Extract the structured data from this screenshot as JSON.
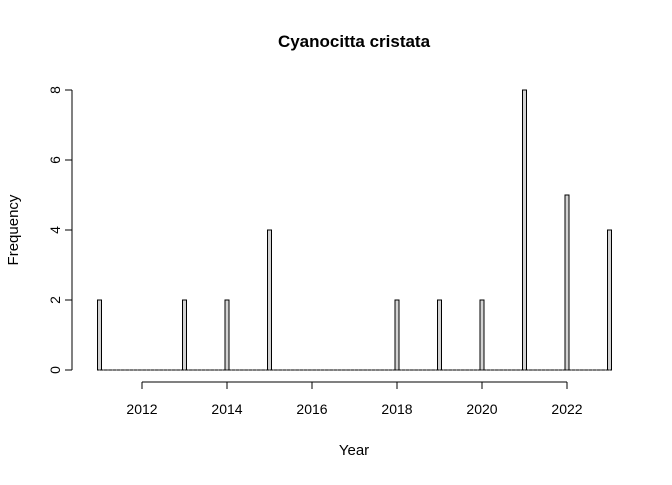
{
  "chart_data": {
    "type": "bar",
    "title": "Cyanocitta cristata",
    "xlabel": "Year",
    "ylabel": "Frequency",
    "x_ticks": [
      "2012",
      "2014",
      "2016",
      "2018",
      "2020",
      "2022"
    ],
    "y_ticks": [
      "0",
      "2",
      "4",
      "6",
      "8"
    ],
    "xlim": [
      2011,
      2023
    ],
    "ylim": [
      0,
      8
    ],
    "bar_fill": "#d3d3d3",
    "bar_stroke": "#000000",
    "series": [
      {
        "x": [
          2011,
          2013,
          2014,
          2015,
          2018,
          2019,
          2020,
          2021,
          2022,
          2023
        ],
        "values": [
          2,
          2,
          2,
          4,
          2,
          2,
          2,
          8,
          5,
          4
        ]
      }
    ],
    "grid": false,
    "legend": false
  }
}
